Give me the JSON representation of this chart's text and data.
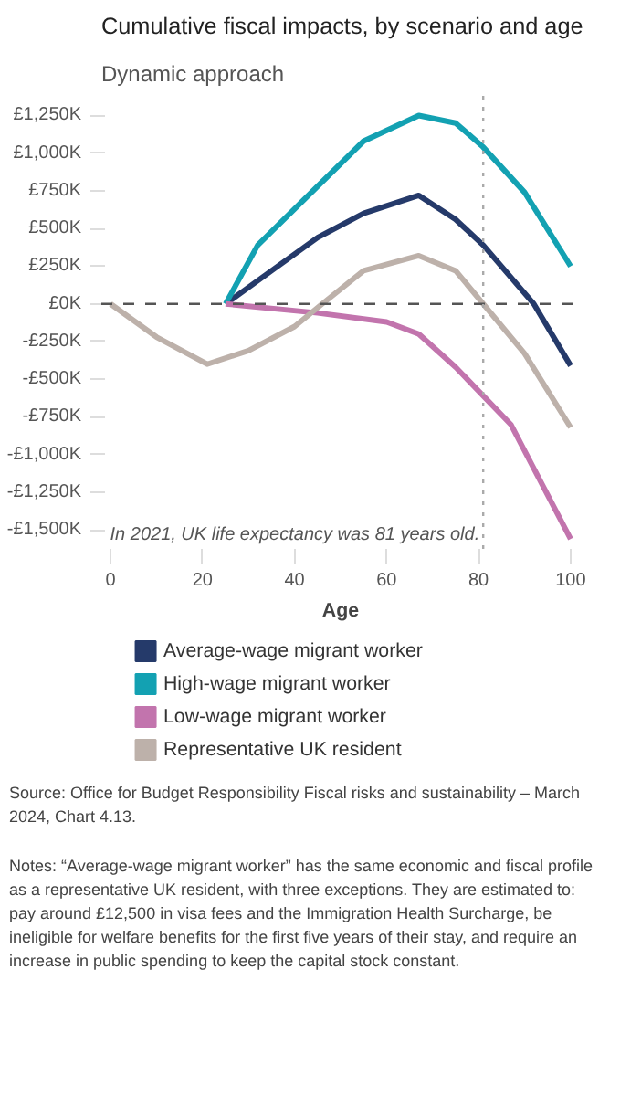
{
  "chart_data": {
    "type": "line",
    "title": "Cumulative fiscal impacts, by scenario and age",
    "subtitle": "Dynamic approach",
    "xlabel": "Age",
    "xlim": [
      -2,
      102
    ],
    "xticks": [
      0,
      20,
      40,
      60,
      80,
      100
    ],
    "ylim": [
      -1650,
      1380
    ],
    "yticks": [
      {
        "value": 1250,
        "label": "£1,250K"
      },
      {
        "value": 1000,
        "label": "£1,000K"
      },
      {
        "value": 750,
        "label": "£750K"
      },
      {
        "value": 500,
        "label": "£500K"
      },
      {
        "value": 250,
        "label": "£250K"
      },
      {
        "value": 0,
        "label": "£0K"
      },
      {
        "value": -250,
        "label": "-£250K"
      },
      {
        "value": -500,
        "label": "-£500K"
      },
      {
        "value": -750,
        "label": "-£750K"
      },
      {
        "value": -1000,
        "label": "-£1,000K"
      },
      {
        "value": -1250,
        "label": "-£1,250K"
      },
      {
        "value": -1500,
        "label": "-£1,500K"
      }
    ],
    "grid": false,
    "legend": "bottom",
    "marker": "none",
    "line_style": "solid",
    "series": [
      {
        "name": "Average-wage migrant worker",
        "color": "#253a6a",
        "x": [
          25,
          35,
          45,
          55,
          67,
          75,
          81,
          92,
          100
        ],
        "values": [
          0,
          220,
          440,
          600,
          720,
          560,
          390,
          0,
          -410
        ]
      },
      {
        "name": "High-wage migrant worker",
        "color": "#13a1b2",
        "x": [
          25,
          32,
          45,
          55,
          67,
          75,
          81,
          90,
          100
        ],
        "values": [
          0,
          390,
          780,
          1080,
          1250,
          1200,
          1040,
          740,
          250
        ]
      },
      {
        "name": "Low-wage migrant worker",
        "color": "#c274ad",
        "x": [
          25,
          45,
          60,
          67,
          75,
          81,
          87,
          100
        ],
        "values": [
          0,
          -60,
          -120,
          -200,
          -420,
          -610,
          -800,
          -1560
        ]
      },
      {
        "name": "Representative UK resident",
        "color": "#bdb1aa",
        "x": [
          0,
          10,
          21,
          30,
          40,
          46,
          55,
          67,
          75,
          81,
          90,
          100
        ],
        "values": [
          0,
          -220,
          -400,
          -310,
          -150,
          0,
          220,
          320,
          220,
          0,
          -330,
          -820
        ]
      }
    ],
    "ref_lines": [
      {
        "axis": "y",
        "value": 0,
        "color": "#555555",
        "line_style": "dashed"
      },
      {
        "axis": "x",
        "value": 81,
        "label": "In 2021, UK life expectancy was 81 years old.",
        "color": "#aaaaaa",
        "line_style": "dotted"
      }
    ],
    "annotations": [
      "Source: Office for Budget Responsibility Fiscal risks and sustainability – March 2024, Chart 4.13.",
      "Notes: “Average-wage migrant worker” has the same economic and fiscal profile as a representative UK resident, with three exceptions. They are estimated to: pay around £12,500 in visa fees and the Immigration Health Surcharge, be ineligible for welfare benefits for the first five years of their stay, and require an increase in public spending to keep the capital stock constant."
    ]
  }
}
